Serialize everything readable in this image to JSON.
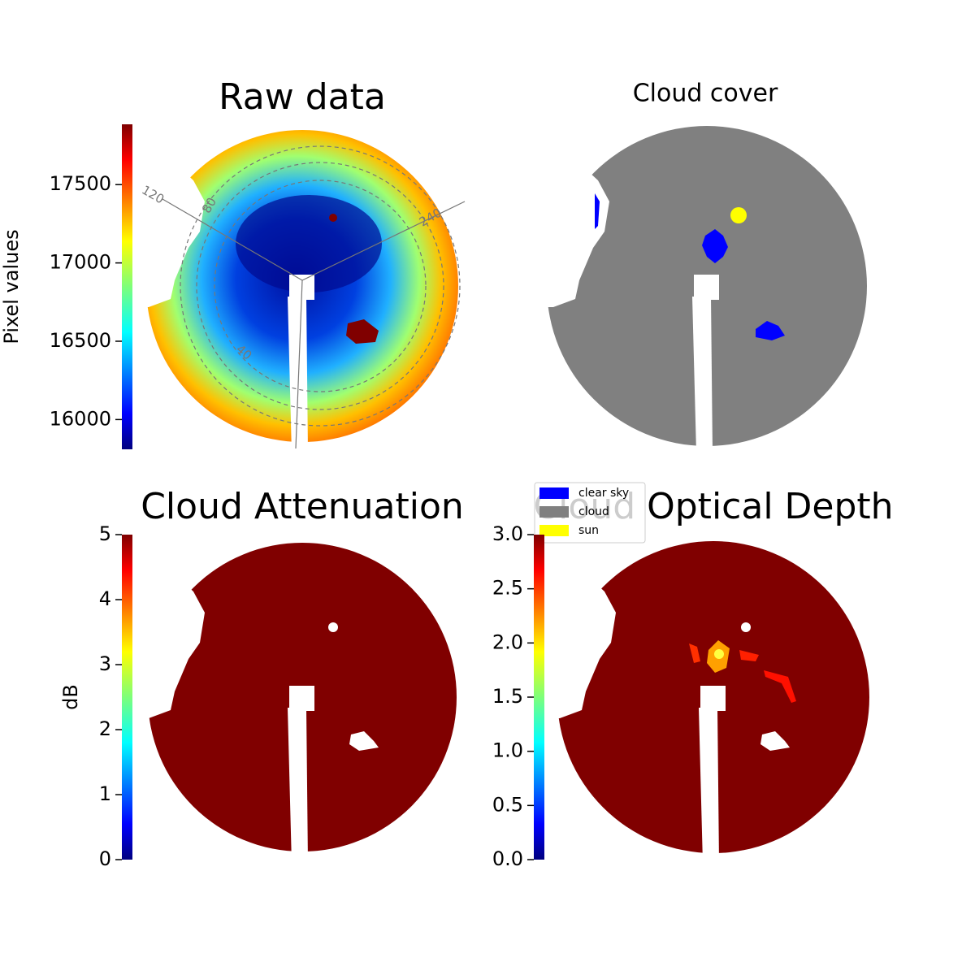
{
  "chart_data": [
    {
      "type": "image",
      "title": "Raw data",
      "colorbar_label": "Pixel values",
      "colormap": "jet",
      "ylim": [
        15810,
        17885
      ],
      "yticks": [
        16000,
        16500,
        17000,
        17500
      ],
      "annotations": [
        "120",
        "80",
        "40",
        "240"
      ]
    },
    {
      "type": "image",
      "title": "Cloud cover",
      "series": [
        {
          "name": "clear sky",
          "color": "#0000ff"
        },
        {
          "name": "cloud",
          "color": "#808080"
        },
        {
          "name": "sun",
          "color": "#ffff00"
        }
      ]
    },
    {
      "type": "image",
      "title": "Cloud Attenuation",
      "colorbar_label": "dB",
      "colormap": "jet",
      "ylim": [
        0,
        5
      ],
      "yticks": [
        0,
        1,
        2,
        3,
        4,
        5
      ]
    },
    {
      "type": "image",
      "title": "Cloud Optical Depth",
      "colormap": "jet",
      "ylim": [
        0,
        3
      ],
      "yticks": [
        {
          "value": 0,
          "label": "0.0"
        },
        0.5,
        {
          "value": 1,
          "label": "1.0"
        },
        1.5,
        {
          "value": 2,
          "label": "2.0"
        },
        2.5,
        {
          "value": 3,
          "label": "3.0"
        }
      ]
    }
  ]
}
